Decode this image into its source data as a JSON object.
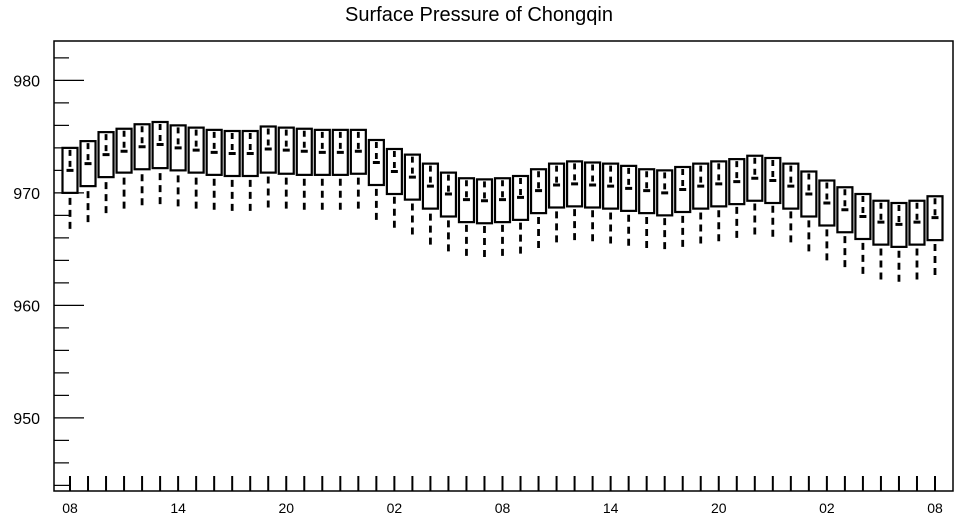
{
  "chart_data": {
    "type": "box",
    "title": "Surface Pressure of Chongqin",
    "xlabel": "",
    "ylabel": "",
    "ylim": [
      943.5,
      983.5
    ],
    "y_ticks": [
      950,
      960,
      970,
      980
    ],
    "x_tick_labels": [
      "08",
      "14",
      "20",
      "02",
      "08",
      "14",
      "20",
      "02",
      "08"
    ],
    "x_tick_positions": [
      0,
      6,
      12,
      18,
      24,
      30,
      36,
      42,
      48
    ],
    "grid": false,
    "series": [
      {
        "boxes": [
          {
            "x": 0,
            "whisker_low": 966.8,
            "q1": 970.0,
            "median": 972.0,
            "q3": 974.0
          },
          {
            "x": 1,
            "whisker_low": 967.4,
            "q1": 970.6,
            "median": 972.6,
            "q3": 974.6
          },
          {
            "x": 2,
            "whisker_low": 968.2,
            "q1": 971.4,
            "median": 973.4,
            "q3": 975.4
          },
          {
            "x": 3,
            "whisker_low": 968.6,
            "q1": 971.8,
            "median": 973.7,
            "q3": 975.7
          },
          {
            "x": 4,
            "whisker_low": 968.9,
            "q1": 972.1,
            "median": 974.1,
            "q3": 976.1
          },
          {
            "x": 5,
            "whisker_low": 969.0,
            "q1": 972.2,
            "median": 974.3,
            "q3": 976.3
          },
          {
            "x": 6,
            "whisker_low": 968.8,
            "q1": 972.0,
            "median": 974.0,
            "q3": 976.0
          },
          {
            "x": 7,
            "whisker_low": 968.6,
            "q1": 971.8,
            "median": 973.8,
            "q3": 975.8
          },
          {
            "x": 8,
            "whisker_low": 968.5,
            "q1": 971.6,
            "median": 973.6,
            "q3": 975.6
          },
          {
            "x": 9,
            "whisker_low": 968.4,
            "q1": 971.5,
            "median": 973.5,
            "q3": 975.5
          },
          {
            "x": 10,
            "whisker_low": 968.4,
            "q1": 971.5,
            "median": 973.5,
            "q3": 975.5
          },
          {
            "x": 11,
            "whisker_low": 968.7,
            "q1": 971.8,
            "median": 973.9,
            "q3": 975.9
          },
          {
            "x": 12,
            "whisker_low": 968.6,
            "q1": 971.7,
            "median": 973.8,
            "q3": 975.8
          },
          {
            "x": 13,
            "whisker_low": 968.5,
            "q1": 971.6,
            "median": 973.7,
            "q3": 975.7
          },
          {
            "x": 14,
            "whisker_low": 968.5,
            "q1": 971.6,
            "median": 973.6,
            "q3": 975.6
          },
          {
            "x": 15,
            "whisker_low": 968.5,
            "q1": 971.6,
            "median": 973.6,
            "q3": 975.6
          },
          {
            "x": 16,
            "whisker_low": 968.6,
            "q1": 971.7,
            "median": 973.7,
            "q3": 975.6
          },
          {
            "x": 17,
            "whisker_low": 967.6,
            "q1": 970.7,
            "median": 972.7,
            "q3": 974.7
          },
          {
            "x": 18,
            "whisker_low": 966.9,
            "q1": 969.9,
            "median": 971.9,
            "q3": 973.9
          },
          {
            "x": 19,
            "whisker_low": 966.3,
            "q1": 969.4,
            "median": 971.4,
            "q3": 973.4
          },
          {
            "x": 20,
            "whisker_low": 965.4,
            "q1": 968.6,
            "median": 970.6,
            "q3": 972.6
          },
          {
            "x": 21,
            "whisker_low": 964.8,
            "q1": 967.9,
            "median": 969.9,
            "q3": 971.8
          },
          {
            "x": 22,
            "whisker_low": 964.4,
            "q1": 967.4,
            "median": 969.4,
            "q3": 971.3
          },
          {
            "x": 23,
            "whisker_low": 964.3,
            "q1": 967.3,
            "median": 969.3,
            "q3": 971.2
          },
          {
            "x": 24,
            "whisker_low": 964.4,
            "q1": 967.4,
            "median": 969.4,
            "q3": 971.3
          },
          {
            "x": 25,
            "whisker_low": 964.6,
            "q1": 967.6,
            "median": 969.6,
            "q3": 971.5
          },
          {
            "x": 26,
            "whisker_low": 965.1,
            "q1": 968.2,
            "median": 970.2,
            "q3": 972.1
          },
          {
            "x": 27,
            "whisker_low": 965.6,
            "q1": 968.7,
            "median": 970.7,
            "q3": 972.6
          },
          {
            "x": 28,
            "whisker_low": 965.8,
            "q1": 968.8,
            "median": 970.8,
            "q3": 972.8
          },
          {
            "x": 29,
            "whisker_low": 965.7,
            "q1": 968.7,
            "median": 970.7,
            "q3": 972.7
          },
          {
            "x": 30,
            "whisker_low": 965.5,
            "q1": 968.6,
            "median": 970.6,
            "q3": 972.6
          },
          {
            "x": 31,
            "whisker_low": 965.3,
            "q1": 968.4,
            "median": 970.4,
            "q3": 972.4
          },
          {
            "x": 32,
            "whisker_low": 965.1,
            "q1": 968.2,
            "median": 970.2,
            "q3": 972.1
          },
          {
            "x": 33,
            "whisker_low": 965.0,
            "q1": 968.0,
            "median": 970.0,
            "q3": 972.0
          },
          {
            "x": 34,
            "whisker_low": 965.2,
            "q1": 968.3,
            "median": 970.3,
            "q3": 972.3
          },
          {
            "x": 35,
            "whisker_low": 965.5,
            "q1": 968.6,
            "median": 970.6,
            "q3": 972.6
          },
          {
            "x": 36,
            "whisker_low": 965.7,
            "q1": 968.8,
            "median": 970.8,
            "q3": 972.8
          },
          {
            "x": 37,
            "whisker_low": 966.0,
            "q1": 969.0,
            "median": 971.0,
            "q3": 973.0
          },
          {
            "x": 38,
            "whisker_low": 966.3,
            "q1": 969.3,
            "median": 971.3,
            "q3": 973.3
          },
          {
            "x": 39,
            "whisker_low": 966.1,
            "q1": 969.1,
            "median": 971.1,
            "q3": 973.1
          },
          {
            "x": 40,
            "whisker_low": 965.6,
            "q1": 968.6,
            "median": 970.6,
            "q3": 972.6
          },
          {
            "x": 41,
            "whisker_low": 964.8,
            "q1": 967.9,
            "median": 969.9,
            "q3": 971.9
          },
          {
            "x": 42,
            "whisker_low": 964.0,
            "q1": 967.1,
            "median": 969.1,
            "q3": 971.1
          },
          {
            "x": 43,
            "whisker_low": 963.4,
            "q1": 966.5,
            "median": 968.5,
            "q3": 970.5
          },
          {
            "x": 44,
            "whisker_low": 962.8,
            "q1": 965.9,
            "median": 967.9,
            "q3": 969.9
          },
          {
            "x": 45,
            "whisker_low": 962.3,
            "q1": 965.4,
            "median": 967.4,
            "q3": 969.3
          },
          {
            "x": 46,
            "whisker_low": 962.1,
            "q1": 965.2,
            "median": 967.2,
            "q3": 969.1
          },
          {
            "x": 47,
            "whisker_low": 962.3,
            "q1": 965.4,
            "median": 967.4,
            "q3": 969.3
          },
          {
            "x": 48,
            "whisker_low": 962.7,
            "q1": 965.8,
            "median": 967.8,
            "q3": 969.7
          }
        ]
      }
    ]
  }
}
